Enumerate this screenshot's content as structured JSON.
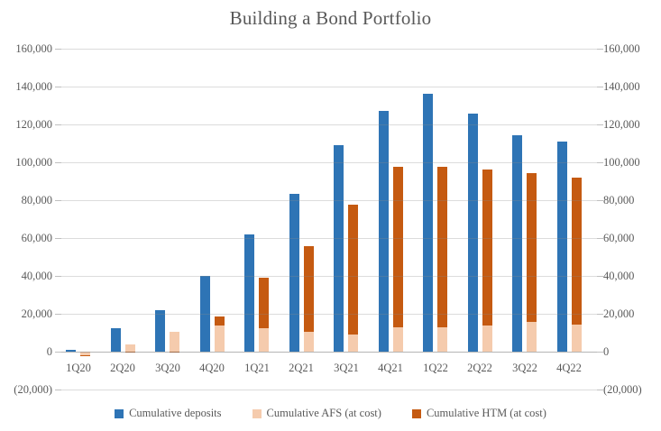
{
  "title": "Building a Bond Portfolio",
  "chart_data": {
    "type": "bar",
    "title": "Building a Bond Portfolio",
    "categories": [
      "1Q20",
      "2Q20",
      "3Q20",
      "4Q20",
      "1Q21",
      "2Q21",
      "3Q21",
      "4Q21",
      "1Q22",
      "2Q22",
      "3Q22",
      "4Q22"
    ],
    "series": [
      {
        "name": "Cumulative deposits",
        "color": "#2E74B5",
        "stack": "deposits",
        "values": [
          1000,
          12500,
          22000,
          40000,
          62000,
          83500,
          109000,
          127000,
          136000,
          125500,
          114500,
          111000
        ]
      },
      {
        "name": "Cumulative AFS (at cost)",
        "color": "#F5CBAD",
        "stack": "securities",
        "values": [
          -2000,
          4000,
          10500,
          14000,
          12500,
          10500,
          9000,
          13000,
          13000,
          14000,
          15500,
          14500
        ]
      },
      {
        "name": "Cumulative HTM (at cost)",
        "color": "#C55A11",
        "stack": "securities",
        "values": [
          -500,
          -500,
          -500,
          4500,
          26500,
          45000,
          68500,
          84500,
          84500,
          82000,
          79000,
          77500
        ]
      }
    ],
    "y_axis": {
      "min": -20000,
      "max": 160000,
      "step": 20000,
      "tick_labels": [
        "160,000",
        "140,000",
        "120,000",
        "100,000",
        "80,000",
        "60,000",
        "40,000",
        "20,000",
        "0",
        "(20,000)"
      ],
      "dual_axis": true
    },
    "grid": true,
    "legend_position": "bottom"
  },
  "colors": {
    "deposits": "#2E74B5",
    "afs": "#F5CBAD",
    "htm": "#C55A11",
    "gridline": "#D9D9D9",
    "axis_line": "#BFBFBF",
    "text": "#595959",
    "background": "#FFFFFF"
  }
}
